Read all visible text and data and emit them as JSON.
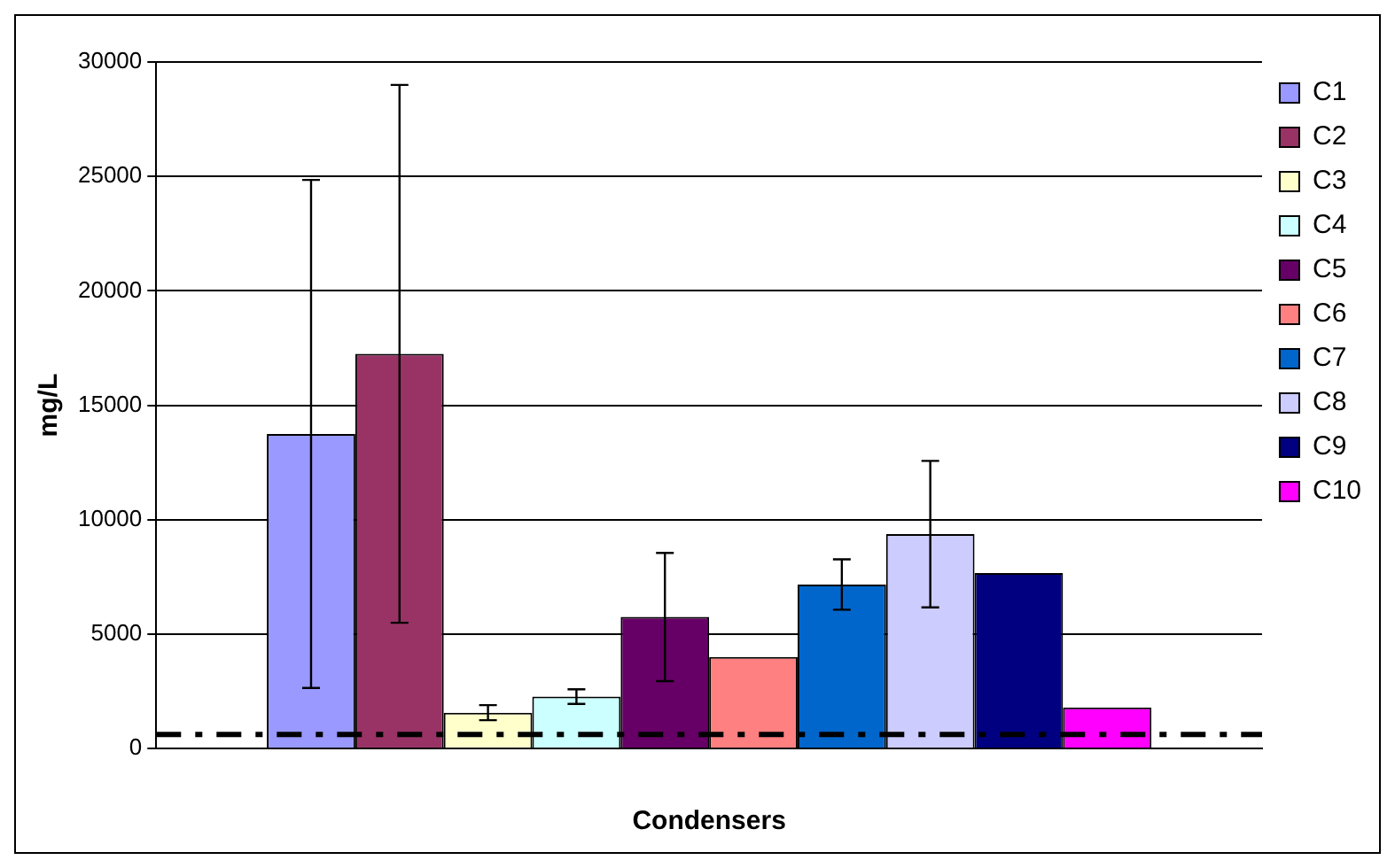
{
  "chart_data": {
    "type": "bar",
    "xlabel": "Condensers",
    "ylabel": "mg/L",
    "categories": [
      null
    ],
    "series": [
      {
        "name": "C1",
        "color": "#9999ff",
        "values": [
          13750
        ],
        "errors": [
          11100
        ]
      },
      {
        "name": "C2",
        "color": "#993366",
        "values": [
          17250
        ],
        "errors": [
          11750
        ]
      },
      {
        "name": "C3",
        "color": "#ffffcc",
        "values": [
          1570
        ],
        "errors": [
          330
        ]
      },
      {
        "name": "C4",
        "color": "#ccffff",
        "values": [
          2270
        ],
        "errors": [
          320
        ]
      },
      {
        "name": "C5",
        "color": "#660066",
        "values": [
          5750
        ],
        "errors": [
          2800
        ]
      },
      {
        "name": "C6",
        "color": "#ff8080",
        "values": [
          4000
        ]
      },
      {
        "name": "C7",
        "color": "#0066cc",
        "values": [
          7170
        ],
        "errors": [
          1100
        ]
      },
      {
        "name": "C8",
        "color": "#ccccff",
        "values": [
          9370
        ],
        "errors": [
          3200
        ]
      },
      {
        "name": "C9",
        "color": "#000080",
        "values": [
          7670
        ]
      },
      {
        "name": "C10",
        "color": "#ff00ff",
        "values": [
          1800
        ]
      }
    ],
    "ylim": [
      0,
      30000
    ],
    "yticks": [
      0,
      5000,
      10000,
      15000,
      20000,
      25000,
      30000
    ],
    "grid": "y",
    "legend": "right",
    "ref_lines": [
      {
        "axis": "y",
        "value": 620,
        "color": "#000000",
        "line_style": "dashed"
      }
    ]
  }
}
